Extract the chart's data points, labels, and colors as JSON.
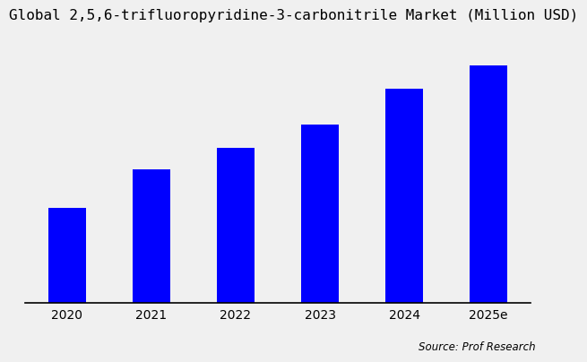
{
  "title": "Global 2,5,6-trifluoropyridine-3-carbonitrile Market (Million USD)",
  "categories": [
    "2020",
    "2021",
    "2022",
    "2023",
    "2024",
    "2025e"
  ],
  "values": [
    32,
    45,
    52,
    60,
    72,
    80
  ],
  "bar_color": "#0000FF",
  "background_color": "#f0f0f0",
  "source_text": "Source: Prof Research",
  "title_fontsize": 11.5,
  "tick_fontsize": 10,
  "source_fontsize": 8.5,
  "ylim": [
    0,
    88
  ],
  "bar_width": 0.45
}
